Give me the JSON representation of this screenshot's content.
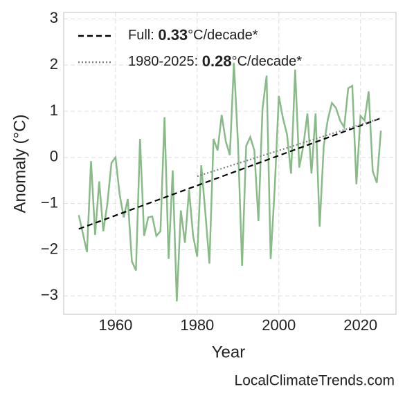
{
  "chart_data": {
    "type": "line",
    "xlabel": "Year",
    "ylabel": "Anomaly (°C)",
    "annotation": "LocalClimateTrends.com",
    "xlim": [
      1947.3,
      2028.7
    ],
    "ylim": [
      -3.4,
      3.14
    ],
    "xticks": [
      1960,
      1980,
      2000,
      2020
    ],
    "yticks": [
      {
        "value": -3,
        "label": "−3"
      },
      {
        "value": -2,
        "label": "−2"
      },
      {
        "value": -1,
        "label": "−1"
      },
      0,
      1,
      2,
      3
    ],
    "grid": true,
    "legend": "upper left",
    "series": [
      {
        "color": "#88bb88",
        "style": "solid",
        "x": [
          1951,
          1952,
          1953,
          1954,
          1955,
          1956,
          1957,
          1958,
          1959,
          1960,
          1961,
          1962,
          1963,
          1964,
          1965,
          1966,
          1967,
          1968,
          1969,
          1970,
          1971,
          1972,
          1973,
          1974,
          1975,
          1976,
          1977,
          1978,
          1979,
          1980,
          1981,
          1982,
          1983,
          1984,
          1985,
          1986,
          1987,
          1988,
          1989,
          1990,
          1991,
          1992,
          1993,
          1994,
          1995,
          1996,
          1997,
          1998,
          1999,
          2000,
          2001,
          2002,
          2003,
          2004,
          2005,
          2006,
          2007,
          2008,
          2009,
          2010,
          2011,
          2012,
          2013,
          2014,
          2015,
          2016,
          2017,
          2018,
          2019,
          2020,
          2021,
          2022,
          2023,
          2024,
          2025
        ],
        "values": [
          -1.25,
          -1.65,
          -2.05,
          -0.08,
          -1.68,
          -0.52,
          -1.6,
          -1.0,
          -0.12,
          0.0,
          -0.8,
          -1.3,
          -0.9,
          -2.25,
          -2.45,
          0.4,
          -1.7,
          -1.3,
          -1.28,
          -1.7,
          -1.6,
          0.87,
          -2.2,
          -0.28,
          -3.12,
          -1.15,
          -1.85,
          -0.7,
          -1.7,
          -2.15,
          -0.17,
          -1.2,
          -2.3,
          0.4,
          0.15,
          0.92,
          0.35,
          0.05,
          2.05,
          0.3,
          -2.35,
          0.25,
          0.44,
          0.15,
          -1.38,
          1.05,
          1.77,
          -2.2,
          -0.65,
          1.33,
          0.85,
          0.5,
          -0.35,
          1.9,
          -0.22,
          0.25,
          0.95,
          -0.35,
          0.95,
          -1.5,
          0.25,
          0.82,
          1.18,
          1.07,
          0.8,
          0.65,
          1.5,
          1.55,
          -0.58,
          0.9,
          0.8,
          1.43,
          -0.3,
          -0.55,
          0.58
        ]
      },
      {
        "name": "Full: 0.33°C/decade*",
        "color": "#000000",
        "style": "dashed",
        "x": [
          1951,
          2025
        ],
        "values": [
          -1.55,
          0.85
        ]
      },
      {
        "name": "1980-2025: 0.28°C/decade*",
        "color": "#808080",
        "style": "dotted",
        "x": [
          1980,
          2025
        ],
        "values": [
          -0.41,
          0.85
        ]
      }
    ]
  }
}
